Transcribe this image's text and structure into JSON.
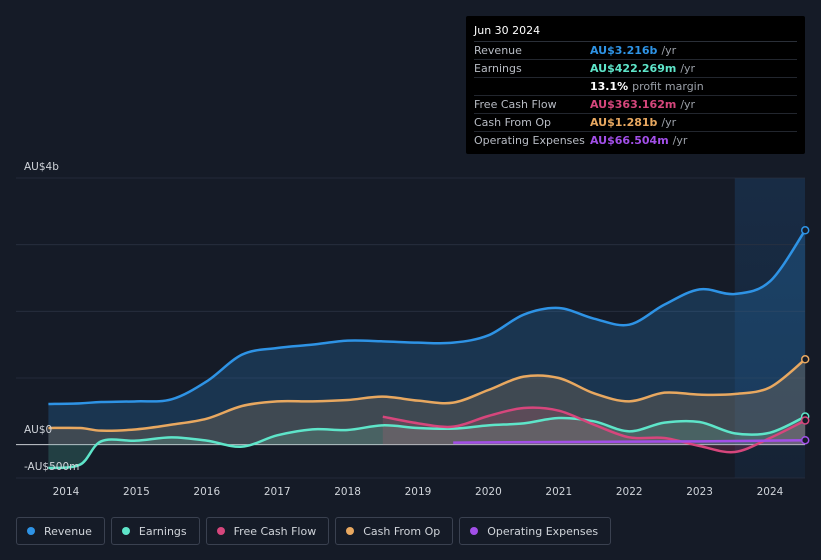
{
  "tooltip": {
    "date": "Jun 30 2024",
    "rows": [
      {
        "label": "Revenue",
        "value": "AU$3.216b",
        "unit": "/yr",
        "color": "#2e93e5"
      },
      {
        "label": "Earnings",
        "value": "AU$422.269m",
        "unit": "/yr",
        "color": "#5ee5c9"
      },
      {
        "label": "",
        "value": "13.1%",
        "unit": "profit margin",
        "color": "#ffffff"
      },
      {
        "label": "Free Cash Flow",
        "value": "AU$363.162m",
        "unit": "/yr",
        "color": "#d6467c"
      },
      {
        "label": "Cash From Op",
        "value": "AU$1.281b",
        "unit": "/yr",
        "color": "#e8a860"
      },
      {
        "label": "Operating Expenses",
        "value": "AU$66.504m",
        "unit": "/yr",
        "color": "#a24fe8"
      }
    ]
  },
  "legend": [
    {
      "label": "Revenue",
      "color": "#2e93e5"
    },
    {
      "label": "Earnings",
      "color": "#5ee5c9"
    },
    {
      "label": "Free Cash Flow",
      "color": "#d6467c"
    },
    {
      "label": "Cash From Op",
      "color": "#e8a860"
    },
    {
      "label": "Operating Expenses",
      "color": "#a24fe8"
    }
  ],
  "chart_data": {
    "type": "area",
    "title": "",
    "xlabel": "",
    "ylabel": "",
    "y_labels": {
      "top": "AU$4b",
      "zero": "AU$0",
      "bottom": "-AU$500m"
    },
    "ylim": [
      -500,
      4000
    ],
    "x_ticks": [
      "2014",
      "2015",
      "2016",
      "2017",
      "2018",
      "2019",
      "2020",
      "2021",
      "2022",
      "2023",
      "2024"
    ],
    "highlight_from_year": 2023.5,
    "series": [
      {
        "name": "Revenue",
        "color": "#2e93e5",
        "x": [
          2013.75,
          2014.2,
          2014.5,
          2015.0,
          2015.5,
          2016.0,
          2016.5,
          2017.0,
          2017.5,
          2018.0,
          2018.5,
          2019.0,
          2019.5,
          2020.0,
          2020.5,
          2021.0,
          2021.5,
          2022.0,
          2022.5,
          2023.0,
          2023.5,
          2024.0,
          2024.5
        ],
        "values": [
          610,
          620,
          640,
          650,
          680,
          950,
          1350,
          1450,
          1500,
          1560,
          1550,
          1530,
          1530,
          1640,
          1950,
          2050,
          1890,
          1800,
          2100,
          2330,
          2260,
          2450,
          3216
        ]
      },
      {
        "name": "Earnings",
        "color": "#5ee5c9",
        "x": [
          2013.75,
          2014.2,
          2014.5,
          2015.0,
          2015.5,
          2016.0,
          2016.5,
          2017.0,
          2017.5,
          2018.0,
          2018.5,
          2019.0,
          2019.5,
          2020.0,
          2020.5,
          2021.0,
          2021.5,
          2022.0,
          2022.5,
          2023.0,
          2023.5,
          2024.0,
          2024.5
        ],
        "values": [
          -350,
          -300,
          50,
          60,
          110,
          60,
          -30,
          140,
          230,
          220,
          290,
          250,
          240,
          290,
          320,
          400,
          350,
          200,
          330,
          340,
          170,
          180,
          422
        ]
      },
      {
        "name": "Free Cash Flow",
        "color": "#d6467c",
        "x": [
          2018.5,
          2019.0,
          2019.5,
          2020.0,
          2020.5,
          2021.0,
          2021.5,
          2022.0,
          2022.5,
          2023.0,
          2023.5,
          2024.0,
          2024.5
        ],
        "values": [
          420,
          320,
          270,
          430,
          550,
          510,
          300,
          110,
          100,
          -20,
          -110,
          100,
          363
        ]
      },
      {
        "name": "Cash From Op",
        "color": "#e8a860",
        "x": [
          2013.75,
          2014.2,
          2014.5,
          2015.0,
          2015.5,
          2016.0,
          2016.5,
          2017.0,
          2017.5,
          2018.0,
          2018.5,
          2019.0,
          2019.5,
          2020.0,
          2020.5,
          2021.0,
          2021.5,
          2022.0,
          2022.5,
          2023.0,
          2023.5,
          2024.0,
          2024.5
        ],
        "values": [
          250,
          250,
          210,
          230,
          300,
          390,
          580,
          650,
          650,
          670,
          720,
          660,
          630,
          820,
          1020,
          1000,
          770,
          650,
          780,
          750,
          760,
          860,
          1281
        ]
      },
      {
        "name": "Operating Expenses",
        "color": "#a24fe8",
        "x": [
          2019.5,
          2020.0,
          2021.0,
          2022.0,
          2023.0,
          2024.0,
          2024.5
        ],
        "values": [
          30,
          35,
          40,
          45,
          50,
          60,
          66.5
        ]
      }
    ]
  }
}
